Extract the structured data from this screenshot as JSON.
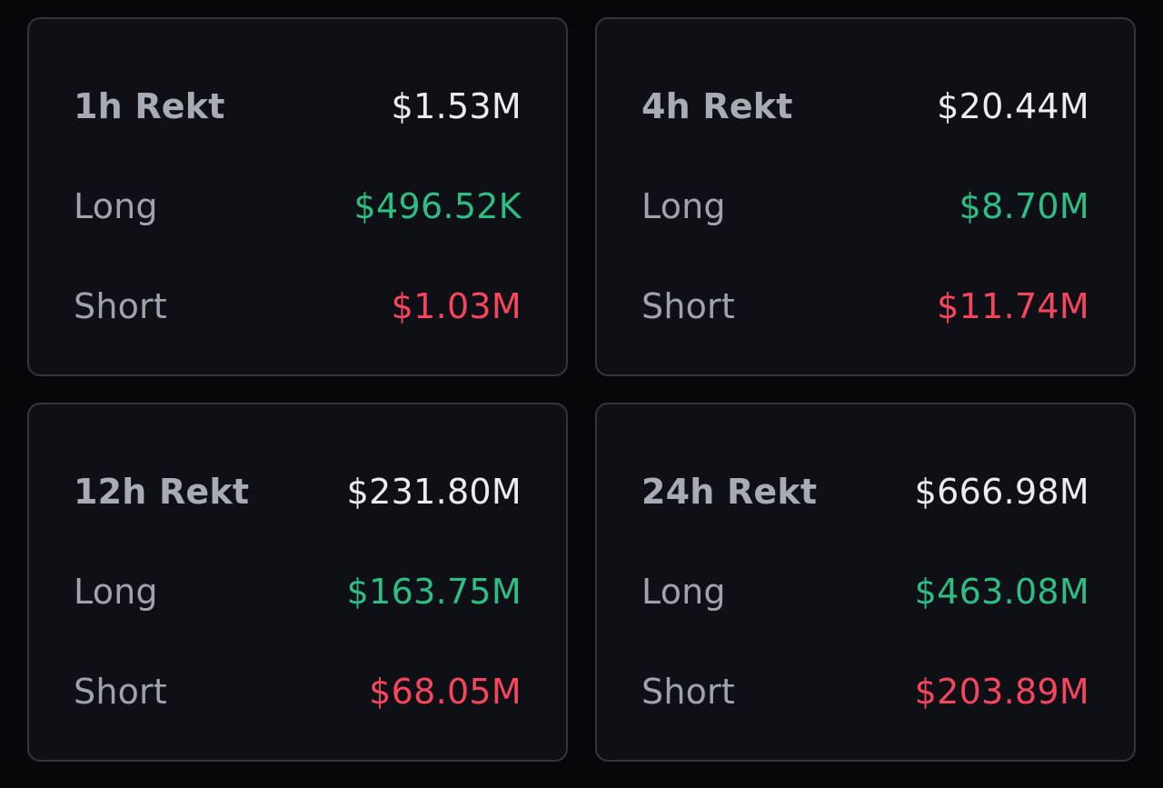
{
  "colors": {
    "background": "#05070a",
    "card": "#0e1016",
    "border": "#33363d",
    "label": "#9ea3ad",
    "total": "#eaecef",
    "long": "#2ebd85",
    "short": "#f6465d"
  },
  "cards": [
    {
      "title": "1h Rekt",
      "total": "$1.53M",
      "long_label": "Long",
      "long_value": "$496.52K",
      "short_label": "Short",
      "short_value": "$1.03M"
    },
    {
      "title": "4h Rekt",
      "total": "$20.44M",
      "long_label": "Long",
      "long_value": "$8.70M",
      "short_label": "Short",
      "short_value": "$11.74M"
    },
    {
      "title": "12h Rekt",
      "total": "$231.80M",
      "long_label": "Long",
      "long_value": "$163.75M",
      "short_label": "Short",
      "short_value": "$68.05M"
    },
    {
      "title": "24h Rekt",
      "total": "$666.98M",
      "long_label": "Long",
      "long_value": "$463.08M",
      "short_label": "Short",
      "short_value": "$203.89M"
    }
  ]
}
